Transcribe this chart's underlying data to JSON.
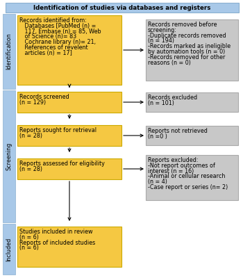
{
  "title": "Identification of studies via databases and registers",
  "title_bg": "#a8c8e8",
  "yellow_box_color": "#f5c842",
  "yellow_box_edge": "#ccaa00",
  "gray_box_color": "#c8c8c8",
  "gray_box_edge": "#aaaaaa",
  "side_label_bg": "#a8c8e8",
  "box1_text": "Records identified from:\n   Databases [PubMed (n) =\n   117, Embase (n) = 85, Web\n   of Science (n)= 83\n   Cochrane library (n)= 21,\n   References of revelent\n   articles (n) = 17]",
  "box2_text": "Records removed before\nscreening:\n-Duplicate records removed\n(n = 194)\n-Records marked as ineligible\nby automation tools (n = 0)\n-Records removed for other\nreasons (n = 0)",
  "box3_text": "Records screened\n(n = 129)",
  "box4_text": "Records excluded\n(n = 101)",
  "box5_text": "Reports sought for retrieval\n(n = 28)",
  "box6_text": "Reports not retrieved\n(n =0 )",
  "box7_text": "Reports assessed for eligibility\n(n = 28)",
  "box8_text": "Reports excluded:\n-Not report outcomes of\ninterest (n = 16)\n-Animal or cellular research\n(n = 4)\n-Case report or series (n= 2)",
  "box9_text": "Studies included in review\n(n = 6)\nReports of included studies\n(n = 6)",
  "fontsize": 5.8
}
